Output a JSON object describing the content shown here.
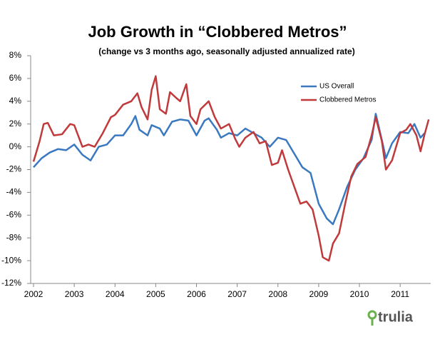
{
  "chart_data": {
    "type": "line",
    "title": "Job Growth in “Clobbered Metros”",
    "subtitle": "(change vs 3 months ago, seasonally adjusted annualized rate)",
    "brand": "trulia",
    "xlim": [
      2002,
      2011.75
    ],
    "xticks": [
      2002,
      2003,
      2004,
      2005,
      2006,
      2007,
      2008,
      2009,
      2010,
      2011
    ],
    "ylim": [
      -12,
      8
    ],
    "yticks": [
      {
        "value": 8,
        "label": "8%"
      },
      {
        "value": 6,
        "label": "6%"
      },
      {
        "value": 4,
        "label": "4%"
      },
      {
        "value": 2,
        "label": "2%"
      },
      {
        "value": 0,
        "label": "0%"
      },
      {
        "value": -2,
        "label": "-2%"
      },
      {
        "value": -4,
        "label": "-4%"
      },
      {
        "value": -6,
        "label": "-6%"
      },
      {
        "value": -8,
        "label": "-8%"
      },
      {
        "value": -10,
        "label": "-10%"
      },
      {
        "value": -12,
        "label": "-12%"
      }
    ],
    "grid": false,
    "legend": "upper right",
    "series": [
      {
        "name": "US Overall",
        "color": "#3a78c0",
        "x": [
          2002.0,
          2002.2,
          2002.4,
          2002.6,
          2002.8,
          2003.0,
          2003.2,
          2003.4,
          2003.6,
          2003.8,
          2004.0,
          2004.2,
          2004.4,
          2004.5,
          2004.6,
          2004.8,
          2004.9,
          2005.1,
          2005.2,
          2005.4,
          2005.6,
          2005.8,
          2006.0,
          2006.2,
          2006.3,
          2006.5,
          2006.6,
          2006.8,
          2007.0,
          2007.2,
          2007.4,
          2007.6,
          2007.8,
          2008.0,
          2008.2,
          2008.4,
          2008.6,
          2008.8,
          2009.0,
          2009.2,
          2009.35,
          2009.5,
          2009.7,
          2009.9,
          2010.1,
          2010.3,
          2010.4,
          2010.55,
          2010.65,
          2010.8,
          2011.0,
          2011.2,
          2011.35,
          2011.5,
          2011.6
        ],
        "values": [
          -1.8,
          -1.0,
          -0.5,
          -0.2,
          -0.3,
          0.2,
          -0.7,
          -1.2,
          0,
          0.2,
          1.0,
          1.0,
          2.0,
          2.7,
          1.5,
          1.0,
          1.9,
          1.6,
          1.0,
          2.2,
          2.4,
          2.3,
          1.0,
          2.3,
          2.5,
          1.5,
          0.8,
          1.2,
          1.0,
          1.6,
          1.2,
          0.8,
          0,
          0.8,
          0.6,
          -0.6,
          -1.8,
          -2.3,
          -5.0,
          -6.3,
          -6.8,
          -5.5,
          -3.5,
          -2.0,
          -1.0,
          0.6,
          2.9,
          0.6,
          -1.0,
          0.3,
          1.3,
          1.2,
          2.0,
          0.8,
          1.2
        ]
      },
      {
        "name": "Clobbered Metros",
        "color": "#c0393b",
        "x": [
          2002.0,
          2002.15,
          2002.25,
          2002.35,
          2002.5,
          2002.7,
          2002.9,
          2003.0,
          2003.2,
          2003.35,
          2003.5,
          2003.7,
          2003.9,
          2004.0,
          2004.2,
          2004.4,
          2004.55,
          2004.65,
          2004.8,
          2004.9,
          2005.0,
          2005.1,
          2005.25,
          2005.35,
          2005.5,
          2005.6,
          2005.75,
          2005.85,
          2006.0,
          2006.1,
          2006.3,
          2006.45,
          2006.6,
          2006.8,
          2006.95,
          2007.05,
          2007.2,
          2007.4,
          2007.55,
          2007.7,
          2007.85,
          2008.0,
          2008.1,
          2008.25,
          2008.4,
          2008.55,
          2008.7,
          2008.85,
          2009.0,
          2009.1,
          2009.25,
          2009.35,
          2009.5,
          2009.65,
          2009.8,
          2009.95,
          2010.15,
          2010.3,
          2010.4,
          2010.55,
          2010.65,
          2010.8,
          2011.0,
          2011.15,
          2011.25,
          2011.4,
          2011.5,
          2011.6,
          2011.7
        ],
        "values": [
          -1.3,
          0.5,
          2.0,
          2.1,
          1.0,
          1.1,
          2.0,
          1.9,
          0,
          0.2,
          0,
          1.2,
          2.6,
          2.8,
          3.7,
          4.0,
          4.7,
          3.5,
          2.4,
          5.0,
          6.2,
          3.3,
          2.9,
          4.8,
          4.3,
          4.0,
          5.5,
          2.7,
          2.0,
          3.3,
          4.0,
          2.6,
          1.6,
          2.0,
          0.7,
          0,
          0.8,
          1.3,
          0.3,
          0.5,
          -1.6,
          -1.4,
          -0.3,
          -2.0,
          -3.5,
          -5.0,
          -4.8,
          -5.5,
          -7.8,
          -9.7,
          -10.0,
          -8.5,
          -7.6,
          -5.0,
          -2.6,
          -1.5,
          -0.9,
          1.0,
          2.6,
          0.5,
          -2.0,
          -1.2,
          1.2,
          1.5,
          2.0,
          1.0,
          -0.4,
          1.1,
          2.4
        ]
      }
    ]
  }
}
